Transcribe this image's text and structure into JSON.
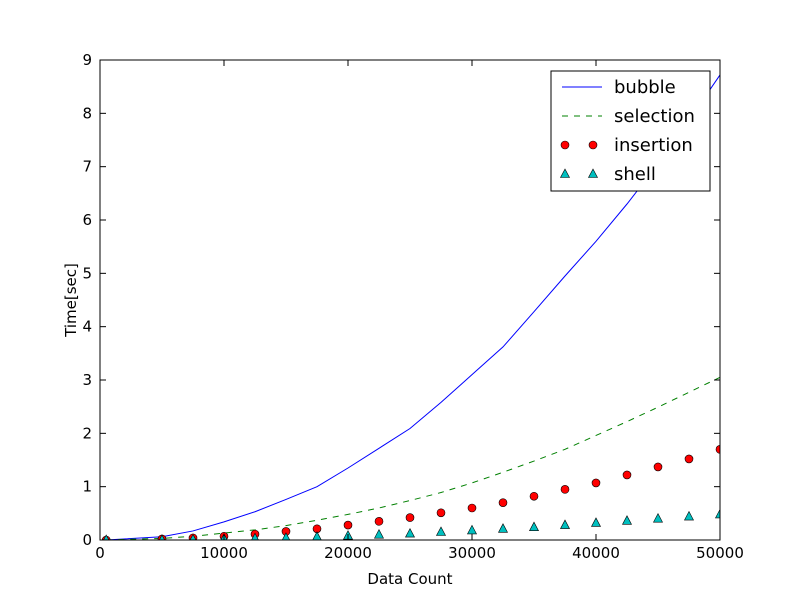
{
  "chart_data": {
    "type": "line",
    "title": "",
    "xlabel": "Data Count",
    "ylabel": "Time[sec]",
    "xlim": [
      0,
      50000
    ],
    "ylim": [
      0,
      9
    ],
    "x_ticks": [
      0,
      10000,
      20000,
      30000,
      40000,
      50000
    ],
    "x_tick_labels": [
      "0",
      "10000",
      "20000",
      "30000",
      "40000",
      "50000"
    ],
    "y_ticks": [
      0,
      1,
      2,
      3,
      4,
      5,
      6,
      7,
      8,
      9
    ],
    "y_tick_labels": [
      "0",
      "1",
      "2",
      "3",
      "4",
      "5",
      "6",
      "7",
      "8",
      "9"
    ],
    "grid": false,
    "legend": "top-right",
    "series": [
      {
        "name": "bubble",
        "color": "#0000ff",
        "style": "solid",
        "marker": "none",
        "x": [
          500,
          5000,
          7500,
          10000,
          12500,
          15000,
          17500,
          20000,
          22500,
          25000,
          27500,
          30000,
          32500,
          35000,
          37500,
          40000,
          42500,
          45000,
          47500,
          50000
        ],
        "y": [
          0.0,
          0.06,
          0.17,
          0.34,
          0.53,
          0.76,
          1.0,
          1.35,
          1.72,
          2.09,
          2.58,
          3.1,
          3.62,
          4.28,
          4.95,
          5.6,
          6.3,
          7.05,
          7.87,
          8.72
        ]
      },
      {
        "name": "selection",
        "color": "#008000",
        "style": "dashed",
        "marker": "none",
        "x": [
          500,
          5000,
          7500,
          10000,
          12500,
          15000,
          17500,
          20000,
          22500,
          25000,
          27500,
          30000,
          32500,
          35000,
          37500,
          40000,
          42500,
          45000,
          47500,
          50000
        ],
        "y": [
          0.0,
          0.03,
          0.07,
          0.13,
          0.19,
          0.27,
          0.37,
          0.48,
          0.6,
          0.74,
          0.89,
          1.07,
          1.27,
          1.48,
          1.7,
          1.96,
          2.22,
          2.49,
          2.77,
          3.05
        ]
      },
      {
        "name": "insertion",
        "color": "#ff0000",
        "style": "none",
        "marker": "circle",
        "x": [
          500,
          5000,
          7500,
          10000,
          12500,
          15000,
          17500,
          20000,
          22500,
          25000,
          27500,
          30000,
          32500,
          35000,
          37500,
          40000,
          42500,
          45000,
          47500,
          50000
        ],
        "y": [
          0.0,
          0.02,
          0.04,
          0.07,
          0.11,
          0.16,
          0.21,
          0.28,
          0.35,
          0.42,
          0.51,
          0.6,
          0.7,
          0.82,
          0.95,
          1.07,
          1.22,
          1.37,
          1.52,
          1.7
        ]
      },
      {
        "name": "shell",
        "color": "#00bfbf",
        "style": "none",
        "marker": "triangle",
        "x": [
          500,
          5000,
          7500,
          10000,
          12500,
          15000,
          17500,
          20000,
          22500,
          25000,
          27500,
          30000,
          32500,
          35000,
          37500,
          40000,
          42500,
          45000,
          47500,
          50000
        ],
        "y": [
          0.0,
          0.0,
          0.01,
          0.02,
          0.03,
          0.04,
          0.06,
          0.08,
          0.1,
          0.12,
          0.15,
          0.18,
          0.21,
          0.24,
          0.28,
          0.32,
          0.36,
          0.4,
          0.44,
          0.48
        ]
      }
    ]
  }
}
